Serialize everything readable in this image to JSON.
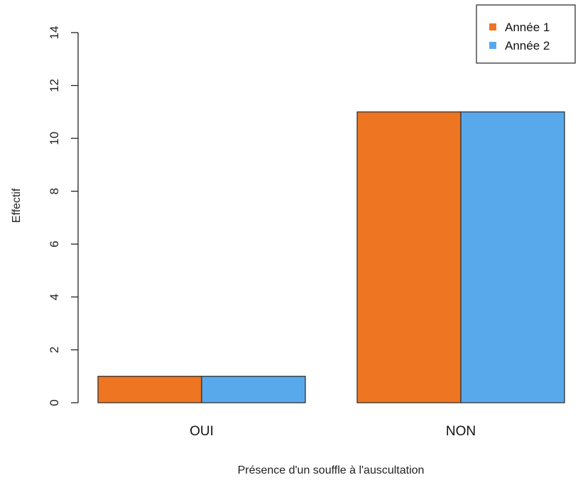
{
  "chart_data": {
    "type": "bar",
    "categories": [
      "OUI",
      "NON"
    ],
    "series": [
      {
        "name": "Année 1",
        "values": [
          1,
          11
        ],
        "color": "#ee7521"
      },
      {
        "name": "Année 2",
        "values": [
          1,
          11
        ],
        "color": "#58a9ec"
      }
    ],
    "title": "",
    "xlabel": "Présence d'un souffle à l'auscultation",
    "ylabel": "Effectif",
    "ylim": [
      0,
      14
    ],
    "yticks": [
      0,
      2,
      4,
      6,
      8,
      10,
      12,
      14
    ],
    "grid": false,
    "legend_position": "top-right"
  }
}
